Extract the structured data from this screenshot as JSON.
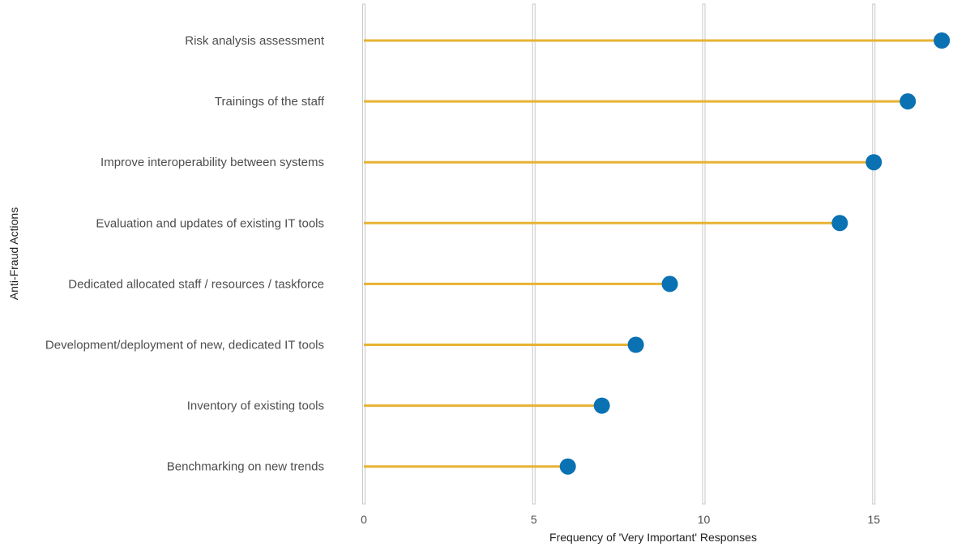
{
  "chart_data": {
    "type": "lollipop",
    "title": "",
    "xlabel": "Frequency of 'Very Important' Responses",
    "ylabel": "Anti-Fraud Actions",
    "xlim": [
      0,
      17
    ],
    "xticks": [
      0,
      5,
      10,
      15
    ],
    "grid": "vertical",
    "colors": {
      "stem": "#e8b233",
      "marker": "#0a71b3",
      "grid": "#c8c8c8"
    },
    "categories": [
      "Risk analysis assessment",
      "Trainings of the staff",
      "Improve interoperability between systems ",
      "Evaluation and updates of existing IT tools",
      "Dedicated allocated staff / resources / taskforce",
      "Development/deployment of new, dedicated IT tools",
      "Inventory of existing tools",
      "Benchmarking on new trends"
    ],
    "values": [
      17,
      16,
      15,
      14,
      9,
      8,
      7,
      6
    ]
  }
}
